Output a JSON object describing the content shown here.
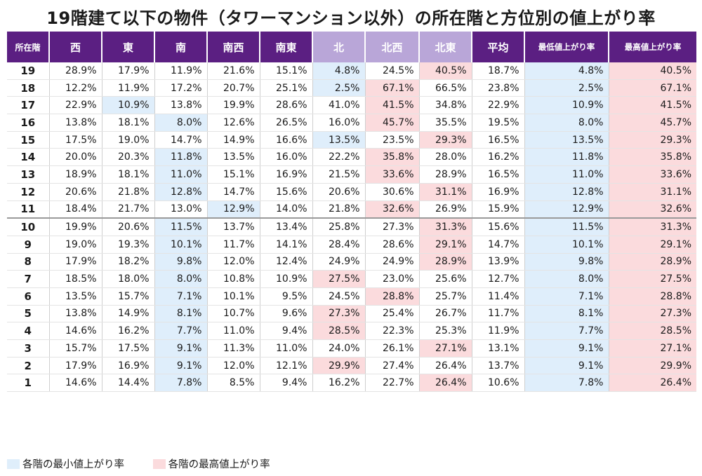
{
  "title": "19階建て以下の物件（タワーマンション以外）の所在階と方位別の値上がり率",
  "colors": {
    "header_main": "#5b1f82",
    "header_north": "#b9a6d8",
    "min_highlight": "#dfeefb",
    "max_highlight": "#fbdbdd"
  },
  "legend": {
    "min_label": "各階の最小値上がり率",
    "max_label": "各階の最高値上がり率"
  },
  "chart_data": {
    "type": "table",
    "columns": [
      "所在階",
      "西",
      "東",
      "南",
      "南西",
      "南東",
      "北",
      "北西",
      "北東",
      "平均",
      "最低値上がり率",
      "最高値上がり率"
    ],
    "rows": [
      {
        "floor": "19",
        "values": [
          "28.9%",
          "17.9%",
          "11.9%",
          "21.6%",
          "15.1%",
          "4.8%",
          "24.5%",
          "40.5%",
          "18.7%",
          "4.8%",
          "40.5%"
        ],
        "min_col": 5,
        "max_col": 7
      },
      {
        "floor": "18",
        "values": [
          "12.2%",
          "11.9%",
          "17.2%",
          "20.7%",
          "25.1%",
          "2.5%",
          "67.1%",
          "66.5%",
          "23.8%",
          "2.5%",
          "67.1%"
        ],
        "min_col": 5,
        "max_col": 6
      },
      {
        "floor": "17",
        "values": [
          "22.9%",
          "10.9%",
          "13.8%",
          "19.9%",
          "28.6%",
          "41.0%",
          "41.5%",
          "34.8%",
          "22.9%",
          "10.9%",
          "41.5%"
        ],
        "min_col": 1,
        "max_col": 6
      },
      {
        "floor": "16",
        "values": [
          "13.8%",
          "18.1%",
          "8.0%",
          "12.6%",
          "26.5%",
          "16.0%",
          "45.7%",
          "35.5%",
          "19.5%",
          "8.0%",
          "45.7%"
        ],
        "min_col": 2,
        "max_col": 6
      },
      {
        "floor": "15",
        "values": [
          "17.5%",
          "19.0%",
          "14.7%",
          "14.9%",
          "16.6%",
          "13.5%",
          "23.5%",
          "29.3%",
          "16.5%",
          "13.5%",
          "29.3%"
        ],
        "min_col": 5,
        "max_col": 7
      },
      {
        "floor": "14",
        "values": [
          "20.0%",
          "20.3%",
          "11.8%",
          "13.5%",
          "16.0%",
          "22.2%",
          "35.8%",
          "28.0%",
          "16.2%",
          "11.8%",
          "35.8%"
        ],
        "min_col": 2,
        "max_col": 6
      },
      {
        "floor": "13",
        "values": [
          "18.9%",
          "18.1%",
          "11.0%",
          "15.1%",
          "16.9%",
          "21.5%",
          "33.6%",
          "28.9%",
          "16.5%",
          "11.0%",
          "33.6%"
        ],
        "min_col": 2,
        "max_col": 6
      },
      {
        "floor": "12",
        "values": [
          "20.6%",
          "21.8%",
          "12.8%",
          "14.7%",
          "15.6%",
          "20.6%",
          "30.6%",
          "31.1%",
          "16.9%",
          "12.8%",
          "31.1%"
        ],
        "min_col": 2,
        "max_col": 7
      },
      {
        "floor": "11",
        "values": [
          "18.4%",
          "21.7%",
          "13.0%",
          "12.9%",
          "14.0%",
          "21.8%",
          "32.6%",
          "26.9%",
          "15.9%",
          "12.9%",
          "32.6%"
        ],
        "min_col": 3,
        "max_col": 6
      },
      {
        "floor": "10",
        "values": [
          "19.9%",
          "20.6%",
          "11.5%",
          "13.7%",
          "13.4%",
          "25.8%",
          "27.3%",
          "31.3%",
          "15.6%",
          "11.5%",
          "31.3%"
        ],
        "min_col": 2,
        "max_col": 7
      },
      {
        "floor": "9",
        "values": [
          "19.0%",
          "19.3%",
          "10.1%",
          "11.7%",
          "14.1%",
          "28.4%",
          "28.6%",
          "29.1%",
          "14.7%",
          "10.1%",
          "29.1%"
        ],
        "min_col": 2,
        "max_col": 7
      },
      {
        "floor": "8",
        "values": [
          "17.9%",
          "18.2%",
          "9.8%",
          "12.0%",
          "12.4%",
          "24.9%",
          "24.9%",
          "28.9%",
          "13.9%",
          "9.8%",
          "28.9%"
        ],
        "min_col": 2,
        "max_col": 7
      },
      {
        "floor": "7",
        "values": [
          "18.5%",
          "18.0%",
          "8.0%",
          "10.8%",
          "10.9%",
          "27.5%",
          "23.0%",
          "25.6%",
          "12.7%",
          "8.0%",
          "27.5%"
        ],
        "min_col": 2,
        "max_col": 5
      },
      {
        "floor": "6",
        "values": [
          "13.5%",
          "15.7%",
          "7.1%",
          "10.1%",
          "9.5%",
          "24.5%",
          "28.8%",
          "25.7%",
          "11.4%",
          "7.1%",
          "28.8%"
        ],
        "min_col": 2,
        "max_col": 6
      },
      {
        "floor": "5",
        "values": [
          "13.8%",
          "14.9%",
          "8.1%",
          "10.7%",
          "9.6%",
          "27.3%",
          "25.4%",
          "26.7%",
          "11.7%",
          "8.1%",
          "27.3%"
        ],
        "min_col": 2,
        "max_col": 5
      },
      {
        "floor": "4",
        "values": [
          "14.6%",
          "16.2%",
          "7.7%",
          "11.0%",
          "9.4%",
          "28.5%",
          "22.3%",
          "25.3%",
          "11.9%",
          "7.7%",
          "28.5%"
        ],
        "min_col": 2,
        "max_col": 5
      },
      {
        "floor": "3",
        "values": [
          "15.7%",
          "17.5%",
          "9.1%",
          "11.3%",
          "11.0%",
          "24.0%",
          "26.1%",
          "27.1%",
          "13.1%",
          "9.1%",
          "27.1%"
        ],
        "min_col": 2,
        "max_col": 7
      },
      {
        "floor": "2",
        "values": [
          "17.9%",
          "16.9%",
          "9.1%",
          "12.0%",
          "12.1%",
          "29.9%",
          "27.4%",
          "26.4%",
          "13.7%",
          "9.1%",
          "29.9%"
        ],
        "min_col": 2,
        "max_col": 5
      },
      {
        "floor": "1",
        "values": [
          "14.6%",
          "14.4%",
          "7.8%",
          "8.5%",
          "9.4%",
          "16.2%",
          "22.7%",
          "26.4%",
          "10.6%",
          "7.8%",
          "26.4%"
        ],
        "min_col": 2,
        "max_col": 7
      }
    ]
  }
}
